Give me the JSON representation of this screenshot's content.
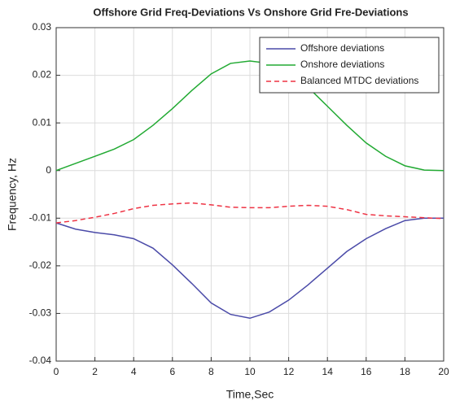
{
  "chart_data": {
    "type": "line",
    "title": "Offshore Grid Freq-Deviations Vs Onshore Grid Fre-Deviations",
    "xlabel": "Time,Sec",
    "ylabel": "Frequency, Hz",
    "x": [
      0,
      1,
      2,
      3,
      4,
      5,
      6,
      7,
      8,
      9,
      10,
      11,
      12,
      13,
      14,
      15,
      16,
      17,
      18,
      19,
      20
    ],
    "series": [
      {
        "name": "Offshore deviations",
        "color": "#4a4aa8",
        "dash": false,
        "values": [
          -0.011,
          -0.0123,
          -0.013,
          -0.0135,
          -0.0143,
          -0.0163,
          -0.0198,
          -0.0237,
          -0.0278,
          -0.0302,
          -0.031,
          -0.0297,
          -0.0272,
          -0.024,
          -0.0205,
          -0.017,
          -0.0143,
          -0.0122,
          -0.0105,
          -0.01,
          -0.01
        ]
      },
      {
        "name": "Onshore deviations",
        "color": "#22aa33",
        "dash": false,
        "values": [
          0,
          0.0015,
          0.003,
          0.0045,
          0.0065,
          0.0095,
          0.013,
          0.0168,
          0.0203,
          0.0225,
          0.023,
          0.0225,
          0.0205,
          0.0175,
          0.0135,
          0.0095,
          0.0058,
          0.003,
          0.001,
          0.0001,
          0
        ]
      },
      {
        "name": "Balanced MTDC deviations",
        "color": "#ee3344",
        "dash": true,
        "values": [
          -0.011,
          -0.0105,
          -0.0098,
          -0.009,
          -0.008,
          -0.0073,
          -0.007,
          -0.0068,
          -0.0072,
          -0.0077,
          -0.0078,
          -0.0078,
          -0.0075,
          -0.0073,
          -0.0075,
          -0.0082,
          -0.0092,
          -0.0095,
          -0.0097,
          -0.0099,
          -0.0101
        ]
      }
    ],
    "xlim": [
      0,
      20
    ],
    "xticks": [
      0,
      2,
      4,
      6,
      8,
      10,
      12,
      14,
      16,
      18,
      20
    ],
    "ylim": [
      -0.04,
      0.03
    ],
    "yticks": [
      -0.04,
      -0.03,
      -0.02,
      -0.01,
      0,
      0.01,
      0.02,
      0.03
    ],
    "grid": true,
    "legend": "upper right"
  }
}
